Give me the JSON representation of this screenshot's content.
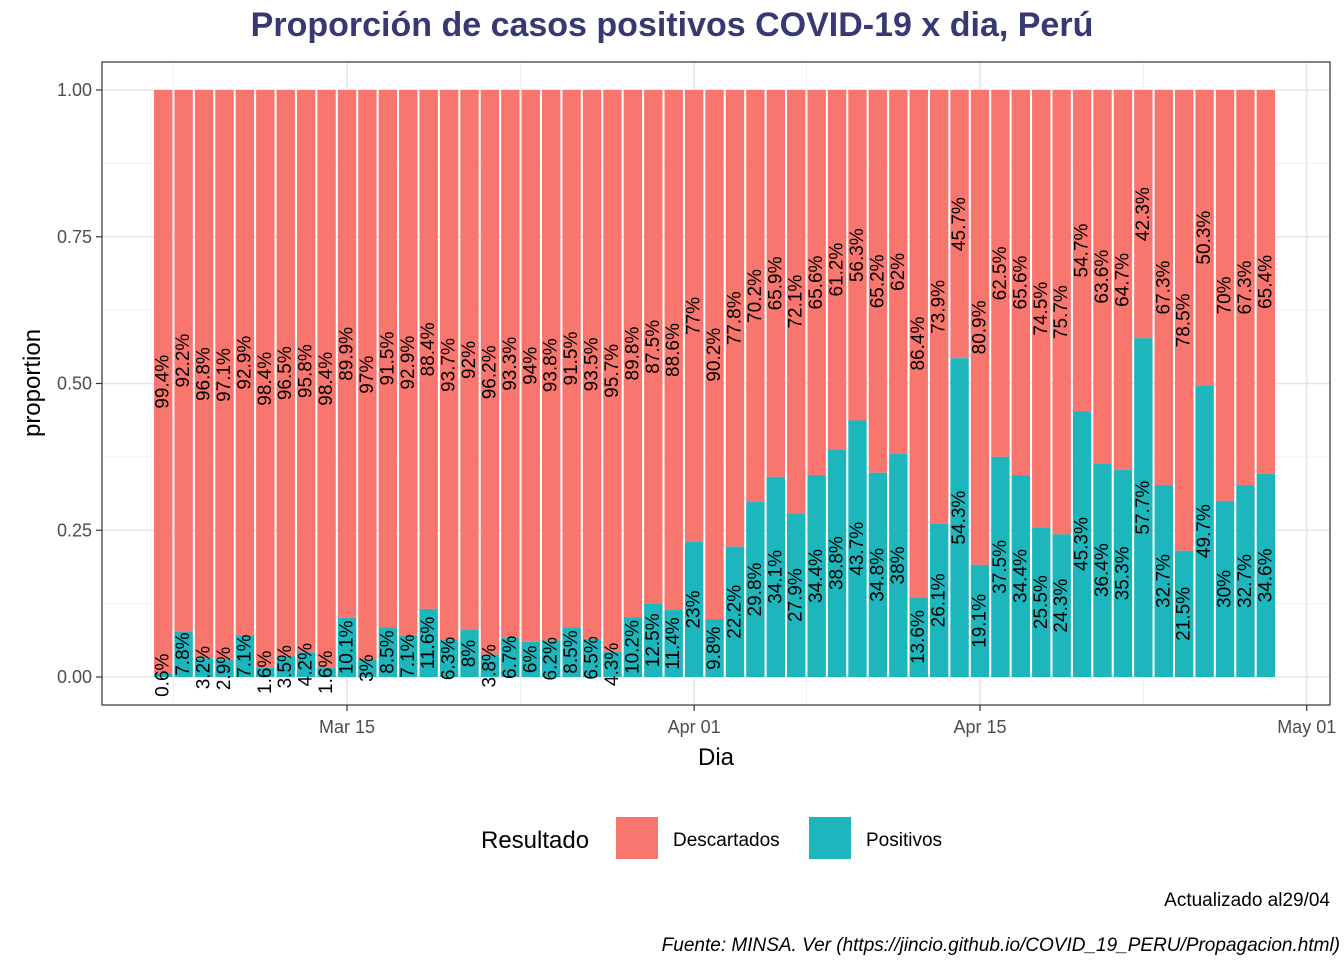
{
  "chart_data": {
    "type": "bar",
    "stacked": true,
    "title": "Proporción de casos positivos COVID-19 x dia, Perú",
    "xlabel": "Dia",
    "ylabel": "proportion",
    "ylim": [
      0,
      1
    ],
    "yticks": [
      "0.00",
      "0.25",
      "0.50",
      "0.75",
      "1.00"
    ],
    "ytick_values": [
      0,
      0.25,
      0.5,
      0.75,
      1.0
    ],
    "xticks": [
      {
        "label": "Mar 15",
        "date": "2020-03-15"
      },
      {
        "label": "Apr 01",
        "date": "2020-04-01"
      },
      {
        "label": "Apr 15",
        "date": "2020-04-15"
      },
      {
        "label": "May 01",
        "date": "2020-05-01"
      }
    ],
    "grid": true,
    "legend": {
      "title": "Resultado",
      "position": "bottom"
    },
    "series": [
      {
        "name": "Descartados",
        "color": "#f8766d",
        "labels": [
          "99.4%",
          "92.2%",
          "96.8%",
          "97.1%",
          "92.9%",
          "98.4%",
          "96.5%",
          "95.8%",
          "98.4%",
          "89.9%",
          "97%",
          "91.5%",
          "92.9%",
          "88.4%",
          "93.7%",
          "92%",
          "96.2%",
          "93.3%",
          "94%",
          "93.8%",
          "91.5%",
          "93.5%",
          "95.7%",
          "89.8%",
          "87.5%",
          "88.6%",
          "77%",
          "90.2%",
          "77.8%",
          "70.2%",
          "65.9%",
          "72.1%",
          "65.6%",
          "61.2%",
          "56.3%",
          "65.2%",
          "62%",
          "86.4%",
          "73.9%",
          "45.7%",
          "80.9%",
          "62.5%",
          "65.6%",
          "74.5%",
          "75.7%",
          "54.7%",
          "63.6%",
          "64.7%",
          "42.3%",
          "67.3%",
          "78.5%",
          "50.3%",
          "70%",
          "67.3%",
          "65.4%"
        ]
      },
      {
        "name": "Positivos",
        "color": "#1db6bd",
        "values": [
          0.006,
          0.078,
          0.032,
          0.029,
          0.071,
          0.016,
          0.035,
          0.042,
          0.016,
          0.101,
          0.03,
          0.085,
          0.071,
          0.116,
          0.063,
          0.08,
          0.038,
          0.067,
          0.06,
          0.062,
          0.085,
          0.065,
          0.043,
          0.102,
          0.125,
          0.114,
          0.23,
          0.098,
          0.222,
          0.298,
          0.341,
          0.279,
          0.344,
          0.388,
          0.437,
          0.348,
          0.38,
          0.136,
          0.261,
          0.543,
          0.191,
          0.375,
          0.344,
          0.255,
          0.243,
          0.453,
          0.364,
          0.353,
          0.577,
          0.327,
          0.215,
          0.497,
          0.3,
          0.327,
          0.346
        ],
        "labels": [
          "0.6%",
          "7.8%",
          "3.2%",
          "2.9%",
          "7.1%",
          "1.6%",
          "3.5%",
          "4.2%",
          "1.6%",
          "10.1%",
          "3%",
          "8.5%",
          "7.1%",
          "11.6%",
          "6.3%",
          "8%",
          "3.8%",
          "6.7%",
          "6%",
          "6.2%",
          "8.5%",
          "6.5%",
          "4.3%",
          "10.2%",
          "12.5%",
          "11.4%",
          "23%",
          "9.8%",
          "22.2%",
          "29.8%",
          "34.1%",
          "27.9%",
          "34.4%",
          "38.8%",
          "43.7%",
          "34.8%",
          "38%",
          "13.6%",
          "26.1%",
          "54.3%",
          "19.1%",
          "37.5%",
          "34.4%",
          "25.5%",
          "24.3%",
          "45.3%",
          "36.4%",
          "35.3%",
          "57.7%",
          "32.7%",
          "21.5%",
          "49.7%",
          "30%",
          "32.7%",
          "34.6%"
        ]
      }
    ],
    "dates_start": "2020-03-06",
    "dates_end": "2020-04-29"
  },
  "caption": {
    "updated": "Actualizado al29/04",
    "source": "Fuente: MINSA. Ver (https://jincio.github.io/COVID_19_PERU/Propagacion.html)"
  }
}
